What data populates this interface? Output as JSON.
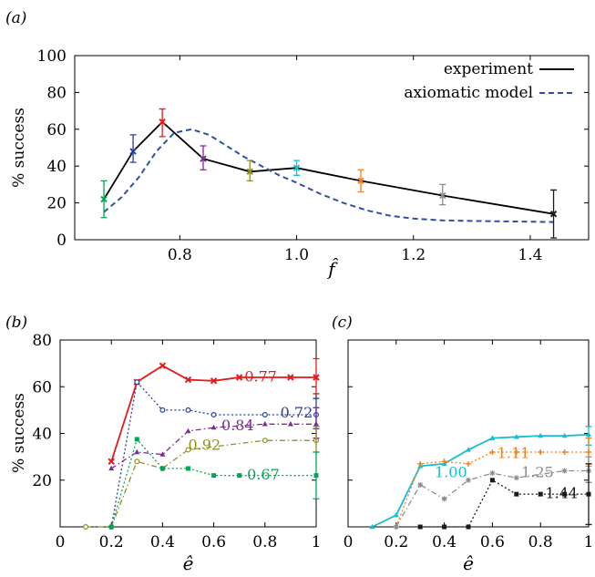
{
  "chart_data": [
    {
      "panel": "(a)",
      "type": "line",
      "xlabel": "f̂",
      "ylabel": "% success",
      "xlim": [
        0.62,
        1.5
      ],
      "ylim": [
        0,
        100
      ],
      "xticks": [
        0.8,
        1.0,
        1.2,
        1.4
      ],
      "xtick_labels": [
        "0.8",
        "1.0",
        "1.2",
        "1.4"
      ],
      "yticks": [
        0,
        20,
        40,
        60,
        80,
        100
      ],
      "ytick_labels": [
        "0",
        "20",
        "40",
        "60",
        "80",
        "100"
      ],
      "legend_position": "top-right",
      "points": [
        {
          "x": 0.67,
          "y": 22,
          "err": [
            12,
            32
          ],
          "color": "#00a651"
        },
        {
          "x": 0.72,
          "y": 48,
          "err": [
            42,
            57
          ],
          "color": "#2d3e9e"
        },
        {
          "x": 0.77,
          "y": 64,
          "err": [
            56,
            71
          ],
          "color": "#e41a1c"
        },
        {
          "x": 0.84,
          "y": 44,
          "err": [
            38,
            51
          ],
          "color": "#7b2d8e"
        },
        {
          "x": 0.92,
          "y": 37,
          "err": [
            32,
            43
          ],
          "color": "#8f8f22"
        },
        {
          "x": 1.0,
          "y": 39,
          "err": [
            35,
            43
          ],
          "color": "#17becf"
        },
        {
          "x": 1.11,
          "y": 32,
          "err": [
            26,
            38
          ],
          "color": "#f08020"
        },
        {
          "x": 1.25,
          "y": 24,
          "err": [
            19,
            30
          ],
          "color": "#8c8c8c"
        },
        {
          "x": 1.44,
          "y": 14,
          "err": [
            1,
            27
          ],
          "color": "#1a1a1a"
        }
      ],
      "series": [
        {
          "name": "experiment",
          "color": "#000000",
          "style": "solid",
          "x": [
            0.67,
            0.72,
            0.77,
            0.84,
            0.92,
            1.0,
            1.11,
            1.25,
            1.44
          ],
          "y": [
            22,
            48,
            64,
            44,
            37,
            39,
            32,
            24,
            14
          ]
        },
        {
          "name": "axiomatic model",
          "color": "#2c4fa8",
          "style": "dashed",
          "x": [
            0.67,
            0.7,
            0.73,
            0.76,
            0.79,
            0.82,
            0.85,
            0.88,
            0.91,
            0.94,
            0.97,
            1.0,
            1.04,
            1.08,
            1.12,
            1.16,
            1.2,
            1.25,
            1.3,
            1.35,
            1.4,
            1.44
          ],
          "y": [
            15,
            23,
            34,
            48,
            58,
            60,
            57,
            51,
            45,
            40,
            35,
            31,
            25,
            20,
            16,
            13,
            11.5,
            10.5,
            10.2,
            10,
            9.8,
            9.6
          ]
        }
      ]
    },
    {
      "panel": "(b)",
      "type": "line",
      "xlabel": "ê",
      "ylabel": "% success",
      "xlim": [
        0,
        1
      ],
      "ylim": [
        0,
        80
      ],
      "xticks": [
        0,
        0.2,
        0.4,
        0.6,
        0.8,
        1
      ],
      "xtick_labels": [
        "0",
        "0.2",
        "0.4",
        "0.6",
        "0.8",
        "1"
      ],
      "yticks": [
        20,
        40,
        60,
        80
      ],
      "ytick_labels": [
        "20",
        "40",
        "60",
        "80"
      ],
      "series": [
        {
          "name": "0.77",
          "color": "#e41a1c",
          "marker": "x",
          "style": "solid",
          "x": [
            0.2,
            0.3,
            0.4,
            0.5,
            0.6,
            0.7,
            0.9,
            1.0
          ],
          "y": [
            28,
            62,
            69,
            63,
            62.5,
            64,
            64,
            64
          ],
          "err_at_1": [
            57,
            72
          ]
        },
        {
          "name": "0.72",
          "color": "#2d3e9e",
          "marker": "o",
          "style": "dotted",
          "x": [
            0.2,
            0.3,
            0.4,
            0.5,
            0.6,
            0.8,
            1.0
          ],
          "y": [
            0,
            62,
            50,
            50,
            48,
            48,
            48
          ],
          "err_at_1": [
            42,
            55
          ]
        },
        {
          "name": "0.84",
          "color": "#7b2d8e",
          "marker": "^",
          "style": "dashdot",
          "x": [
            0.2,
            0.3,
            0.4,
            0.5,
            0.6,
            0.8,
            0.9,
            1.0
          ],
          "y": [
            25,
            32,
            31,
            41,
            42.5,
            44,
            44,
            44
          ],
          "err_at_1": [
            38,
            51
          ]
        },
        {
          "name": "0.92",
          "color": "#8f8f22",
          "marker": "o",
          "style": "dashdot",
          "x": [
            0.1,
            0.2,
            0.3,
            0.4,
            0.5,
            0.8,
            1.0
          ],
          "y": [
            0,
            0,
            28,
            25,
            33,
            37,
            37
          ],
          "err_at_1": [
            32,
            43
          ]
        },
        {
          "name": "0.67",
          "color": "#00a651",
          "marker": "s",
          "style": "dotted",
          "x": [
            0.2,
            0.3,
            0.4,
            0.5,
            0.6,
            0.7,
            1.0
          ],
          "y": [
            0,
            37.5,
            25,
            25,
            22,
            22,
            22
          ],
          "err_at_1": [
            12,
            32
          ]
        }
      ]
    },
    {
      "panel": "(c)",
      "type": "line",
      "xlabel": "ê",
      "xlim": [
        0,
        1
      ],
      "ylim": [
        0,
        80
      ],
      "xticks": [
        0,
        0.2,
        0.4,
        0.6,
        0.8,
        1
      ],
      "xtick_labels": [
        "0",
        "0.2",
        "0.4",
        "0.6",
        "0.8",
        "1"
      ],
      "series": [
        {
          "name": "1.00",
          "color": "#17becf",
          "marker": "^",
          "style": "solid",
          "x": [
            0.1,
            0.2,
            0.3,
            0.4,
            0.5,
            0.6,
            0.7,
            0.8,
            0.9,
            1.0
          ],
          "y": [
            0,
            5,
            26,
            27,
            33,
            38,
            38.5,
            39,
            39,
            39.5
          ],
          "err_at_1": [
            35,
            43
          ]
        },
        {
          "name": "1.11",
          "color": "#f08020",
          "marker": "+",
          "style": "dotted",
          "x": [
            0.2,
            0.3,
            0.4,
            0.5,
            0.6,
            0.7,
            0.8,
            0.9,
            1.0
          ],
          "y": [
            0,
            27,
            28,
            27,
            32,
            32,
            32,
            32,
            32
          ],
          "err_at_1": [
            26,
            38
          ]
        },
        {
          "name": "1.25",
          "color": "#8c8c8c",
          "marker": "*",
          "style": "dashdot",
          "x": [
            0.2,
            0.3,
            0.4,
            0.5,
            0.6,
            0.7,
            0.9,
            1.0
          ],
          "y": [
            0,
            18,
            12,
            20,
            23,
            21,
            24,
            24
          ],
          "err_at_1": [
            19,
            30
          ]
        },
        {
          "name": "1.44",
          "color": "#1a1a1a",
          "marker": "s",
          "style": "dotted",
          "x": [
            0.3,
            0.4,
            0.5,
            0.6,
            0.7,
            0.8,
            0.9,
            1.0
          ],
          "y": [
            0,
            0,
            0,
            20,
            14,
            14,
            14,
            14
          ],
          "err_at_1": [
            1,
            27
          ]
        }
      ]
    }
  ]
}
